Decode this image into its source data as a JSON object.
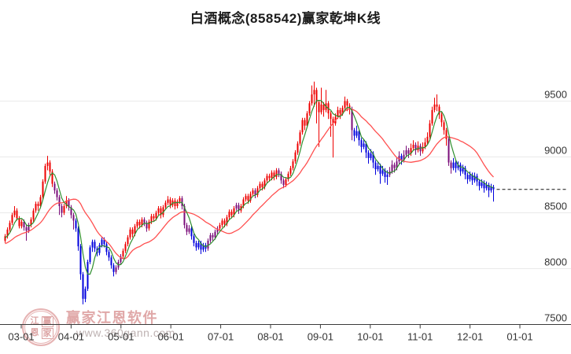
{
  "title": "白酒概念(858542)赢家乾坤K线",
  "watermark": {
    "logo_chars": [
      "江",
      "赢",
      "恩",
      "家"
    ],
    "name": "赢家江恩软件",
    "url": "www.360gann.com"
  },
  "colors": {
    "up": "#ee0000",
    "down": "#0000dd",
    "neutral": "#7a0d7a",
    "ma_short": "#2f8f2f",
    "ma_long": "#ff5050",
    "grid": "#eaeaea",
    "axis": "#3a3a3a",
    "label": "#333333",
    "last_price_line": "#111111"
  },
  "chart_data": {
    "type": "candlestick",
    "title": "白酒概念(858542)赢家乾坤K线",
    "xlabel": "",
    "ylabel": "",
    "y_ticks": [
      9500,
      9000,
      8500,
      8000,
      7500
    ],
    "x_ticks": [
      "03-01",
      "04-01",
      "05-01",
      "06-01",
      "07-01",
      "08-01",
      "09-01",
      "10-01",
      "11-01",
      "12-01",
      "01-01"
    ],
    "ylim": [
      7450,
      9750
    ],
    "grid": true,
    "legend": "none",
    "last_close": 8710,
    "candle_color_legend": {
      "r": "up-trend red",
      "b": "down-trend blue",
      "p": "transition purple"
    },
    "ma_lines": [
      {
        "name": "short-ma",
        "window": 5,
        "color_key": "ma_short"
      },
      {
        "name": "long-ma",
        "window": 20,
        "color_key": "ma_long"
      }
    ],
    "candles": [
      [
        8250,
        8310,
        8230,
        8290,
        "r"
      ],
      [
        8290,
        8370,
        8270,
        8350,
        "r"
      ],
      [
        8350,
        8430,
        8330,
        8410,
        "r"
      ],
      [
        8410,
        8500,
        8390,
        8480,
        "r"
      ],
      [
        8480,
        8560,
        8460,
        8520,
        "r"
      ],
      [
        8520,
        8540,
        8430,
        8450,
        "r"
      ],
      [
        8450,
        8470,
        8360,
        8380,
        "r"
      ],
      [
        8380,
        8440,
        8360,
        8420,
        "r"
      ],
      [
        8420,
        8440,
        8340,
        8370,
        "p"
      ],
      [
        8370,
        8390,
        8250,
        8340,
        "p"
      ],
      [
        8340,
        8410,
        8320,
        8390,
        "p"
      ],
      [
        8390,
        8460,
        8370,
        8440,
        "r"
      ],
      [
        8440,
        8540,
        8420,
        8520,
        "r"
      ],
      [
        8520,
        8600,
        8500,
        8580,
        "r"
      ],
      [
        8580,
        8600,
        8520,
        8560,
        "r"
      ],
      [
        8560,
        8660,
        8540,
        8640,
        "r"
      ],
      [
        8640,
        8800,
        8620,
        8780,
        "r"
      ],
      [
        8780,
        8940,
        8760,
        8920,
        "r"
      ],
      [
        8920,
        9010,
        8880,
        8950,
        "r"
      ],
      [
        8950,
        8970,
        8840,
        8870,
        "r"
      ],
      [
        8870,
        8890,
        8730,
        8760,
        "r"
      ],
      [
        8760,
        8780,
        8670,
        8700,
        "p"
      ],
      [
        8700,
        8720,
        8610,
        8640,
        "p"
      ],
      [
        8640,
        8660,
        8480,
        8560,
        "p"
      ],
      [
        8560,
        8580,
        8460,
        8500,
        "p"
      ],
      [
        8500,
        8580,
        8480,
        8560,
        "r"
      ],
      [
        8560,
        8650,
        8540,
        8610,
        "r"
      ],
      [
        8610,
        8630,
        8520,
        8550,
        "p"
      ],
      [
        8550,
        8570,
        8450,
        8480,
        "p"
      ],
      [
        8480,
        8500,
        8350,
        8430,
        "p"
      ],
      [
        8430,
        8450,
        8330,
        8360,
        "b"
      ],
      [
        8360,
        8380,
        8160,
        8200,
        "b"
      ],
      [
        8200,
        8220,
        7900,
        7950,
        "b"
      ],
      [
        7950,
        7970,
        7680,
        7730,
        "b"
      ],
      [
        7730,
        7840,
        7700,
        7820,
        "b"
      ],
      [
        7820,
        8080,
        7800,
        8060,
        "b"
      ],
      [
        8060,
        8210,
        8040,
        8190,
        "b"
      ],
      [
        8190,
        8260,
        8150,
        8240,
        "b"
      ],
      [
        8240,
        8260,
        8150,
        8180,
        "b"
      ],
      [
        8180,
        8200,
        8110,
        8140,
        "b"
      ],
      [
        8140,
        8230,
        8120,
        8210,
        "b"
      ],
      [
        8210,
        8280,
        8190,
        8260,
        "b"
      ],
      [
        8260,
        8280,
        8190,
        8220,
        "b"
      ],
      [
        8220,
        8240,
        8120,
        8150,
        "b"
      ],
      [
        8150,
        8170,
        8070,
        8100,
        "b"
      ],
      [
        8100,
        8120,
        8000,
        8030,
        "b"
      ],
      [
        8030,
        8050,
        7930,
        7970,
        "b"
      ],
      [
        7970,
        8030,
        7950,
        8010,
        "p"
      ],
      [
        8010,
        8080,
        7990,
        8060,
        "p"
      ],
      [
        8060,
        8130,
        8040,
        8110,
        "p"
      ],
      [
        8110,
        8180,
        8090,
        8160,
        "r"
      ],
      [
        8160,
        8240,
        8140,
        8220,
        "r"
      ],
      [
        8220,
        8300,
        8200,
        8280,
        "r"
      ],
      [
        8280,
        8370,
        8260,
        8350,
        "r"
      ],
      [
        8350,
        8370,
        8280,
        8310,
        "r"
      ],
      [
        8310,
        8400,
        8290,
        8380,
        "r"
      ],
      [
        8380,
        8440,
        8360,
        8420,
        "r"
      ],
      [
        8420,
        8440,
        8360,
        8390,
        "r"
      ],
      [
        8390,
        8460,
        8370,
        8440,
        "r"
      ],
      [
        8440,
        8460,
        8380,
        8410,
        "p"
      ],
      [
        8410,
        8430,
        8330,
        8360,
        "p"
      ],
      [
        8360,
        8440,
        8340,
        8420,
        "r"
      ],
      [
        8420,
        8490,
        8400,
        8470,
        "r"
      ],
      [
        8470,
        8490,
        8420,
        8450,
        "r"
      ],
      [
        8450,
        8520,
        8430,
        8500,
        "r"
      ],
      [
        8500,
        8560,
        8480,
        8540,
        "r"
      ],
      [
        8540,
        8560,
        8450,
        8480,
        "r"
      ],
      [
        8480,
        8570,
        8460,
        8550,
        "r"
      ],
      [
        8550,
        8610,
        8530,
        8590,
        "r"
      ],
      [
        8590,
        8650,
        8570,
        8620,
        "r"
      ],
      [
        8620,
        8640,
        8540,
        8570,
        "r"
      ],
      [
        8570,
        8630,
        8550,
        8610,
        "r"
      ],
      [
        8610,
        8630,
        8530,
        8560,
        "r"
      ],
      [
        8560,
        8620,
        8540,
        8600,
        "r"
      ],
      [
        8600,
        8650,
        8580,
        8630,
        "r"
      ],
      [
        8630,
        8650,
        8530,
        8560,
        "p"
      ],
      [
        8560,
        8580,
        8360,
        8390,
        "p"
      ],
      [
        8390,
        8410,
        8300,
        8330,
        "p"
      ],
      [
        8330,
        8390,
        8310,
        8360,
        "p"
      ],
      [
        8360,
        8380,
        8260,
        8290,
        "b"
      ],
      [
        8290,
        8310,
        8200,
        8230,
        "b"
      ],
      [
        8230,
        8250,
        8160,
        8190,
        "b"
      ],
      [
        8190,
        8250,
        8170,
        8230,
        "b"
      ],
      [
        8230,
        8250,
        8130,
        8170,
        "b"
      ],
      [
        8170,
        8230,
        8150,
        8210,
        "b"
      ],
      [
        8210,
        8230,
        8150,
        8180,
        "b"
      ],
      [
        8180,
        8270,
        8160,
        8250,
        "p"
      ],
      [
        8250,
        8320,
        8230,
        8300,
        "p"
      ],
      [
        8300,
        8320,
        8250,
        8280,
        "p"
      ],
      [
        8280,
        8350,
        8260,
        8330,
        "p"
      ],
      [
        8330,
        8380,
        8310,
        8360,
        "p"
      ],
      [
        8360,
        8410,
        8340,
        8390,
        "r"
      ],
      [
        8390,
        8450,
        8370,
        8430,
        "r"
      ],
      [
        8430,
        8450,
        8370,
        8400,
        "r"
      ],
      [
        8400,
        8480,
        8380,
        8460,
        "r"
      ],
      [
        8460,
        8530,
        8440,
        8510,
        "r"
      ],
      [
        8510,
        8530,
        8450,
        8480,
        "r"
      ],
      [
        8480,
        8560,
        8460,
        8540,
        "r"
      ],
      [
        8540,
        8590,
        8520,
        8570,
        "p"
      ],
      [
        8570,
        8590,
        8490,
        8520,
        "p"
      ],
      [
        8520,
        8580,
        8500,
        8560,
        "r"
      ],
      [
        8560,
        8640,
        8540,
        8620,
        "r"
      ],
      [
        8620,
        8670,
        8600,
        8650,
        "r"
      ],
      [
        8650,
        8670,
        8580,
        8610,
        "r"
      ],
      [
        8610,
        8690,
        8590,
        8670,
        "r"
      ],
      [
        8670,
        8720,
        8650,
        8700,
        "r"
      ],
      [
        8700,
        8720,
        8630,
        8660,
        "p"
      ],
      [
        8660,
        8740,
        8640,
        8720,
        "r"
      ],
      [
        8720,
        8780,
        8700,
        8760,
        "r"
      ],
      [
        8760,
        8780,
        8700,
        8730,
        "r"
      ],
      [
        8730,
        8810,
        8710,
        8790,
        "r"
      ],
      [
        8790,
        8850,
        8770,
        8830,
        "r"
      ],
      [
        8830,
        8850,
        8780,
        8810,
        "r"
      ],
      [
        8810,
        8880,
        8790,
        8860,
        "r"
      ],
      [
        8860,
        8880,
        8790,
        8820,
        "r"
      ],
      [
        8820,
        8900,
        8800,
        8880,
        "r"
      ],
      [
        8880,
        8900,
        8820,
        8850,
        "p"
      ],
      [
        8850,
        8870,
        8760,
        8790,
        "p"
      ],
      [
        8790,
        8810,
        8720,
        8750,
        "p"
      ],
      [
        8750,
        8820,
        8730,
        8800,
        "r"
      ],
      [
        8800,
        8870,
        8780,
        8850,
        "r"
      ],
      [
        8850,
        8920,
        8830,
        8900,
        "r"
      ],
      [
        8900,
        8980,
        8880,
        8960,
        "r"
      ],
      [
        8960,
        9060,
        8940,
        9040,
        "r"
      ],
      [
        9040,
        9140,
        9020,
        9120,
        "r"
      ],
      [
        9120,
        9240,
        9100,
        9220,
        "r"
      ],
      [
        9220,
        9350,
        9200,
        9330,
        "r"
      ],
      [
        9330,
        9350,
        9240,
        9280,
        "r"
      ],
      [
        9280,
        9410,
        9260,
        9390,
        "r"
      ],
      [
        9390,
        9500,
        9370,
        9480,
        "r"
      ],
      [
        9480,
        9640,
        9460,
        9560,
        "r"
      ],
      [
        9560,
        9675,
        9450,
        9600,
        "r"
      ],
      [
        9600,
        9620,
        9300,
        9490,
        "r"
      ],
      [
        9490,
        9510,
        9090,
        9400,
        "r"
      ],
      [
        9400,
        9620,
        9380,
        9470,
        "r"
      ],
      [
        9470,
        9490,
        9360,
        9420,
        "r"
      ],
      [
        9420,
        9600,
        9400,
        9480,
        "r"
      ],
      [
        9480,
        9500,
        9340,
        9390,
        "r"
      ],
      [
        9390,
        9410,
        9180,
        9340,
        "r"
      ],
      [
        9340,
        9360,
        8995,
        9300,
        "r"
      ],
      [
        9300,
        9390,
        9280,
        9360,
        "r"
      ],
      [
        9360,
        9450,
        9340,
        9420,
        "r"
      ],
      [
        9420,
        9440,
        9340,
        9390,
        "r"
      ],
      [
        9390,
        9460,
        9370,
        9440,
        "r"
      ],
      [
        9440,
        9540,
        9420,
        9500,
        "r"
      ],
      [
        9500,
        9520,
        9410,
        9460,
        "r"
      ],
      [
        9460,
        9480,
        9380,
        9430,
        "r"
      ],
      [
        9430,
        9450,
        9150,
        9240,
        "p"
      ],
      [
        9240,
        9260,
        9140,
        9190,
        "b"
      ],
      [
        9190,
        9280,
        9170,
        9230,
        "b"
      ],
      [
        9230,
        9250,
        9100,
        9150,
        "b"
      ],
      [
        9150,
        9170,
        9040,
        9090,
        "b"
      ],
      [
        9090,
        9160,
        9070,
        9120,
        "b"
      ],
      [
        9120,
        9140,
        8990,
        9040,
        "b"
      ],
      [
        9040,
        9060,
        8940,
        8990,
        "b"
      ],
      [
        8990,
        9070,
        8970,
        9030,
        "b"
      ],
      [
        9030,
        9050,
        8900,
        8950,
        "b"
      ],
      [
        8950,
        8970,
        8840,
        8890,
        "b"
      ],
      [
        8890,
        8960,
        8870,
        8920,
        "b"
      ],
      [
        8920,
        8940,
        8760,
        8850,
        "b"
      ],
      [
        8850,
        8920,
        8830,
        8880,
        "b"
      ],
      [
        8880,
        8900,
        8770,
        8820,
        "b"
      ],
      [
        8820,
        8880,
        8750,
        8840,
        "b"
      ],
      [
        8840,
        8910,
        8820,
        8870,
        "p"
      ],
      [
        8870,
        8970,
        8850,
        8930,
        "p"
      ],
      [
        8930,
        8950,
        8860,
        8900,
        "p"
      ],
      [
        8900,
        9000,
        8880,
        8960,
        "p"
      ],
      [
        8960,
        9050,
        8940,
        9010,
        "p"
      ],
      [
        9010,
        9030,
        8930,
        8970,
        "b"
      ],
      [
        8970,
        9060,
        8950,
        9020,
        "p"
      ],
      [
        9020,
        9100,
        9000,
        9060,
        "p"
      ],
      [
        9060,
        9080,
        8990,
        9030,
        "p"
      ],
      [
        9030,
        9120,
        9010,
        9080,
        "r"
      ],
      [
        9080,
        9150,
        9060,
        9110,
        "r"
      ],
      [
        9110,
        9130,
        9020,
        9060,
        "p"
      ],
      [
        9060,
        9140,
        9040,
        9100,
        "r"
      ],
      [
        9100,
        9120,
        9010,
        9050,
        "p"
      ],
      [
        9050,
        9130,
        9030,
        9090,
        "r"
      ],
      [
        9090,
        9170,
        9070,
        9130,
        "r"
      ],
      [
        9130,
        9220,
        9110,
        9180,
        "r"
      ],
      [
        9180,
        9330,
        9160,
        9300,
        "r"
      ],
      [
        9300,
        9450,
        9280,
        9420,
        "r"
      ],
      [
        9420,
        9530,
        9400,
        9470,
        "r"
      ],
      [
        9470,
        9560,
        9410,
        9450,
        "r"
      ],
      [
        9450,
        9470,
        9340,
        9380,
        "r"
      ],
      [
        9380,
        9400,
        9270,
        9310,
        "r"
      ],
      [
        9310,
        9330,
        9200,
        9240,
        "r"
      ],
      [
        9240,
        9260,
        9100,
        9160,
        "r"
      ],
      [
        9160,
        9180,
        8920,
        8950,
        "p"
      ],
      [
        8950,
        8970,
        8850,
        8900,
        "p"
      ],
      [
        8900,
        8990,
        8880,
        8950,
        "b"
      ],
      [
        8950,
        8970,
        8860,
        8900,
        "b"
      ],
      [
        8900,
        8960,
        8880,
        8930,
        "b"
      ],
      [
        8930,
        8950,
        8830,
        8870,
        "b"
      ],
      [
        8870,
        8930,
        8850,
        8900,
        "b"
      ],
      [
        8900,
        8920,
        8800,
        8840,
        "b"
      ],
      [
        8840,
        8860,
        8760,
        8800,
        "b"
      ],
      [
        8800,
        8870,
        8780,
        8840,
        "b"
      ],
      [
        8840,
        8860,
        8750,
        8790,
        "b"
      ],
      [
        8790,
        8860,
        8770,
        8830,
        "b"
      ],
      [
        8830,
        8850,
        8740,
        8780,
        "b"
      ],
      [
        8780,
        8800,
        8700,
        8740,
        "b"
      ],
      [
        8740,
        8800,
        8720,
        8770,
        "b"
      ],
      [
        8770,
        8790,
        8680,
        8720,
        "b"
      ],
      [
        8720,
        8780,
        8700,
        8750,
        "b"
      ],
      [
        8750,
        8770,
        8640,
        8700,
        "b"
      ],
      [
        8700,
        8760,
        8680,
        8730,
        "b"
      ],
      [
        8730,
        8750,
        8600,
        8710,
        "b"
      ]
    ]
  }
}
